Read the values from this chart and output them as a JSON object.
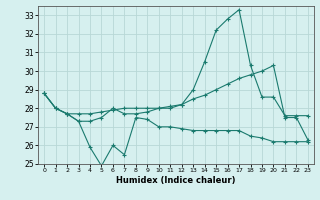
{
  "title": "",
  "xlabel": "Humidex (Indice chaleur)",
  "ylabel": "",
  "background_color": "#d6f0ef",
  "grid_color": "#b8d8d6",
  "line_color": "#1a7a6e",
  "x_values": [
    0,
    1,
    2,
    3,
    4,
    5,
    6,
    7,
    8,
    9,
    10,
    11,
    12,
    13,
    14,
    15,
    16,
    17,
    18,
    19,
    20,
    21,
    22,
    23
  ],
  "line1": [
    28.8,
    28.0,
    27.7,
    27.3,
    25.9,
    24.9,
    26.0,
    25.5,
    27.5,
    27.4,
    27.0,
    27.0,
    26.9,
    26.8,
    26.8,
    26.8,
    26.8,
    26.8,
    26.5,
    26.4,
    26.2,
    26.2,
    26.2,
    26.2
  ],
  "line2": [
    28.8,
    28.0,
    27.7,
    27.7,
    27.7,
    27.8,
    27.9,
    28.0,
    28.0,
    28.0,
    28.0,
    28.0,
    28.2,
    28.5,
    28.7,
    29.0,
    29.3,
    29.6,
    29.8,
    30.0,
    30.3,
    27.5,
    27.5,
    26.3
  ],
  "line3": [
    28.8,
    28.0,
    27.7,
    27.3,
    27.3,
    27.5,
    28.0,
    27.7,
    27.7,
    27.8,
    28.0,
    28.1,
    28.2,
    29.0,
    30.5,
    32.2,
    32.8,
    33.3,
    30.3,
    28.6,
    28.6,
    27.6,
    27.6,
    27.6
  ],
  "xlim": [
    -0.5,
    23.5
  ],
  "ylim": [
    25,
    33.5
  ],
  "yticks": [
    25,
    26,
    27,
    28,
    29,
    30,
    31,
    32,
    33
  ],
  "xticks": [
    0,
    1,
    2,
    3,
    4,
    5,
    6,
    7,
    8,
    9,
    10,
    11,
    12,
    13,
    14,
    15,
    16,
    17,
    18,
    19,
    20,
    21,
    22,
    23
  ],
  "xtick_labels": [
    "0",
    "1",
    "2",
    "3",
    "4",
    "5",
    "6",
    "7",
    "8",
    "9",
    "10",
    "11",
    "12",
    "13",
    "14",
    "15",
    "16",
    "17",
    "18",
    "19",
    "20",
    "21",
    "22",
    "23"
  ]
}
